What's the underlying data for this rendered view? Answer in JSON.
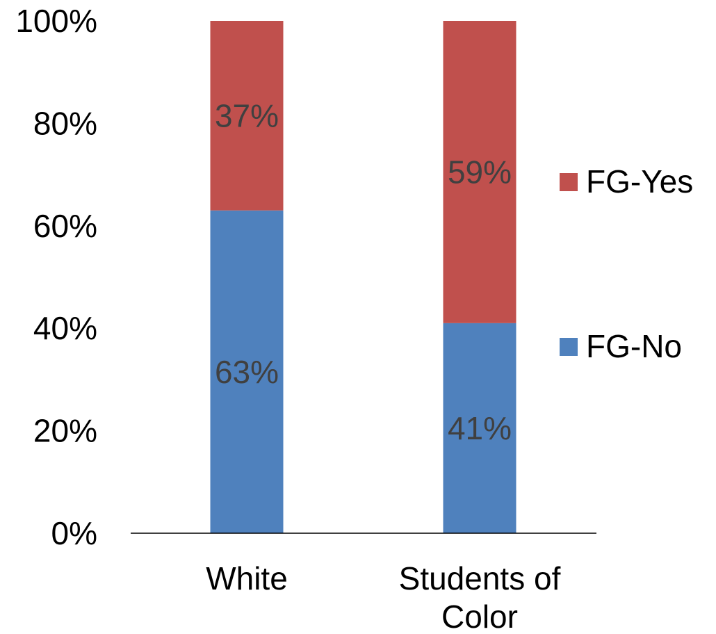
{
  "chart_data": {
    "type": "bar",
    "stacked": true,
    "categories": [
      [
        "White"
      ],
      [
        "Students of",
        "Color"
      ]
    ],
    "series": [
      {
        "name": "FG-No",
        "values": [
          63,
          41
        ],
        "labels": [
          "63%",
          "41%"
        ],
        "color": "#4f81bd"
      },
      {
        "name": "FG-Yes",
        "values": [
          37,
          59
        ],
        "labels": [
          "37%",
          "59%"
        ],
        "color": "#c0504d"
      }
    ],
    "ylim": [
      0,
      100
    ],
    "yticks": [
      0,
      20,
      40,
      60,
      80,
      100
    ],
    "ytick_labels": [
      "0%",
      "20%",
      "40%",
      "60%",
      "80%",
      "100%"
    ],
    "legend": {
      "position": "right",
      "order": [
        "FG-Yes",
        "FG-No"
      ]
    },
    "grid": false
  }
}
